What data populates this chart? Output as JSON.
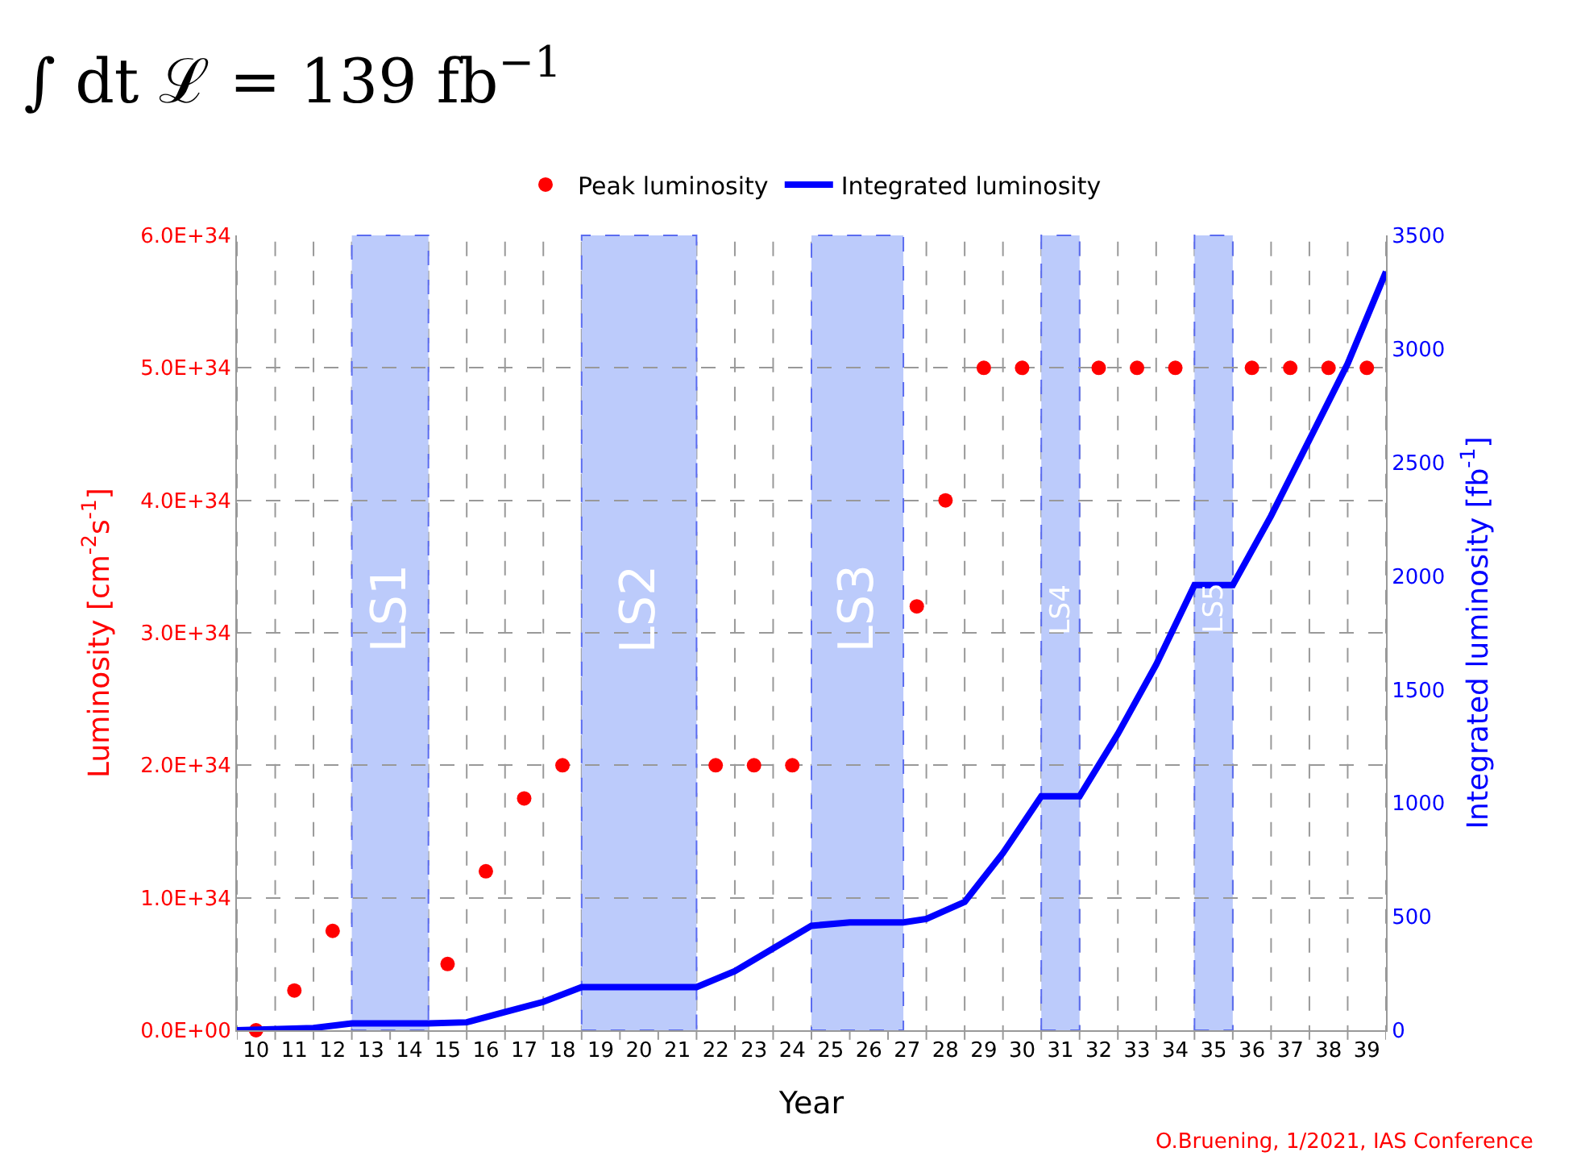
{
  "chart_data": {
    "type": "scatter",
    "title": "∫ dt ℒ = 139 fb$^{−1}$",
    "xlabel": "Year",
    "ylabel": "Luminosity [cm$^{-2}$s$^{-1}$]",
    "y2label": "Integrated luminosity [fb$^{-1}$]",
    "annotations": [
      "O.Bruening, 1/2021, IAS Conference"
    ],
    "series": [
      {
        "name": "Peak luminosity",
        "marker": "circle",
        "color": "#ff0000",
        "x": [
          10,
          11,
          12,
          15,
          16,
          17,
          18,
          22,
          23,
          24,
          27.25,
          28,
          29,
          30,
          32,
          33,
          34,
          36,
          37,
          38,
          39
        ],
        "values": [
          0,
          3e+33,
          7.5e+33,
          5e+33,
          1.2e+34,
          1.75e+34,
          2e+34,
          2e+34,
          2e+34,
          2e+34,
          3.2e+34,
          4e+34,
          5e+34,
          5e+34,
          5e+34,
          5e+34,
          5e+34,
          5e+34,
          5e+34,
          5e+34,
          5e+34
        ]
      },
      {
        "name": "Integrated luminosity",
        "type": "line",
        "marker": "none",
        "axis": "y2",
        "color": "#0000ff",
        "x": [
          9.5,
          11.5,
          12.5,
          14.5,
          15.5,
          16.5,
          17.5,
          18.5,
          21.5,
          22.5,
          24.5,
          25.5,
          26.9,
          27.5,
          28.5,
          29.5,
          30.5,
          31.5,
          32.5,
          33.5,
          34.5,
          35.5,
          36.5,
          37.5,
          38.5,
          39.5
        ],
        "values": [
          0,
          10,
          30,
          30,
          35,
          80,
          125,
          190,
          190,
          260,
          460,
          475,
          475,
          490,
          565,
          780,
          1030,
          1030,
          1305,
          1610,
          1960,
          1960,
          2265,
          2600,
          2935,
          3340
        ]
      }
    ],
    "bands": [
      {
        "axis": "x",
        "from": 12.5,
        "to": 14.5,
        "label": "LS1",
        "color": "#bccbfb"
      },
      {
        "axis": "x",
        "from": 18.5,
        "to": 21.5,
        "label": "LS2",
        "color": "#bccbfb"
      },
      {
        "axis": "x",
        "from": 24.5,
        "to": 26.9,
        "label": "LS3",
        "color": "#bccbfb"
      },
      {
        "axis": "x",
        "from": 30.5,
        "to": 31.5,
        "label": "LS4",
        "color": "#bccbfb"
      },
      {
        "axis": "x",
        "from": 34.5,
        "to": 35.5,
        "label": "LS5",
        "color": "#bccbfb"
      }
    ],
    "xlim": [
      9.5,
      39.5
    ],
    "xticks": [
      {
        "value": 9.5,
        "label": null
      },
      {
        "value": 10,
        "label": "10"
      },
      {
        "value": 10.5,
        "label": null
      },
      {
        "value": 11,
        "label": "11"
      },
      {
        "value": 11.5,
        "label": null
      },
      {
        "value": 12,
        "label": "12"
      },
      {
        "value": 12.5,
        "label": null
      },
      {
        "value": 13,
        "label": "13"
      },
      {
        "value": 13.5,
        "label": null
      },
      {
        "value": 14,
        "label": "14"
      },
      {
        "value": 14.5,
        "label": null
      },
      {
        "value": 15,
        "label": "15"
      },
      {
        "value": 15.5,
        "label": null
      },
      {
        "value": 16,
        "label": "16"
      },
      {
        "value": 16.5,
        "label": null
      },
      {
        "value": 17,
        "label": "17"
      },
      {
        "value": 17.5,
        "label": null
      },
      {
        "value": 18,
        "label": "18"
      },
      {
        "value": 18.5,
        "label": null
      },
      {
        "value": 19,
        "label": "19"
      },
      {
        "value": 19.5,
        "label": null
      },
      {
        "value": 20,
        "label": "20"
      },
      {
        "value": 20.5,
        "label": null
      },
      {
        "value": 21,
        "label": "21"
      },
      {
        "value": 21.5,
        "label": null
      },
      {
        "value": 22,
        "label": "22"
      },
      {
        "value": 22.5,
        "label": null
      },
      {
        "value": 23,
        "label": "23"
      },
      {
        "value": 23.5,
        "label": null
      },
      {
        "value": 24,
        "label": "24"
      },
      {
        "value": 24.5,
        "label": null
      },
      {
        "value": 25,
        "label": "25"
      },
      {
        "value": 25.5,
        "label": null
      },
      {
        "value": 26,
        "label": "26"
      },
      {
        "value": 26.5,
        "label": null
      },
      {
        "value": 27,
        "label": "27"
      },
      {
        "value": 27.5,
        "label": null
      },
      {
        "value": 28,
        "label": "28"
      },
      {
        "value": 28.5,
        "label": null
      },
      {
        "value": 29,
        "label": "29"
      },
      {
        "value": 29.5,
        "label": null
      },
      {
        "value": 30,
        "label": "30"
      },
      {
        "value": 30.5,
        "label": null
      },
      {
        "value": 31,
        "label": "31"
      },
      {
        "value": 31.5,
        "label": null
      },
      {
        "value": 32,
        "label": "32"
      },
      {
        "value": 32.5,
        "label": null
      },
      {
        "value": 33,
        "label": "33"
      },
      {
        "value": 33.5,
        "label": null
      },
      {
        "value": 34,
        "label": "34"
      },
      {
        "value": 34.5,
        "label": null
      },
      {
        "value": 35,
        "label": "35"
      },
      {
        "value": 35.5,
        "label": null
      },
      {
        "value": 36,
        "label": "36"
      },
      {
        "value": 36.5,
        "label": null
      },
      {
        "value": 37,
        "label": "37"
      },
      {
        "value": 37.5,
        "label": null
      },
      {
        "value": 38,
        "label": "38"
      },
      {
        "value": 38.5,
        "label": null
      },
      {
        "value": 39,
        "label": "39"
      },
      {
        "value": 39.5,
        "label": null
      }
    ],
    "ylim": [
      0,
      6e+34
    ],
    "yticks": [
      {
        "value": 0,
        "label": "0.0E+00"
      },
      {
        "value": 1e+34,
        "label": "1.0E+34"
      },
      {
        "value": 2e+34,
        "label": "2.0E+34"
      },
      {
        "value": 3e+34,
        "label": "3.0E+34"
      },
      {
        "value": 4e+34,
        "label": "4.0E+34"
      },
      {
        "value": 5e+34,
        "label": "5.0E+34"
      },
      {
        "value": 6e+34,
        "label": "6.0E+34"
      }
    ],
    "y2lim": [
      0,
      3500
    ],
    "y2ticks": [
      0,
      500,
      1000,
      1500,
      2000,
      2500,
      3000,
      3500
    ],
    "grid": true,
    "legend": "top"
  }
}
